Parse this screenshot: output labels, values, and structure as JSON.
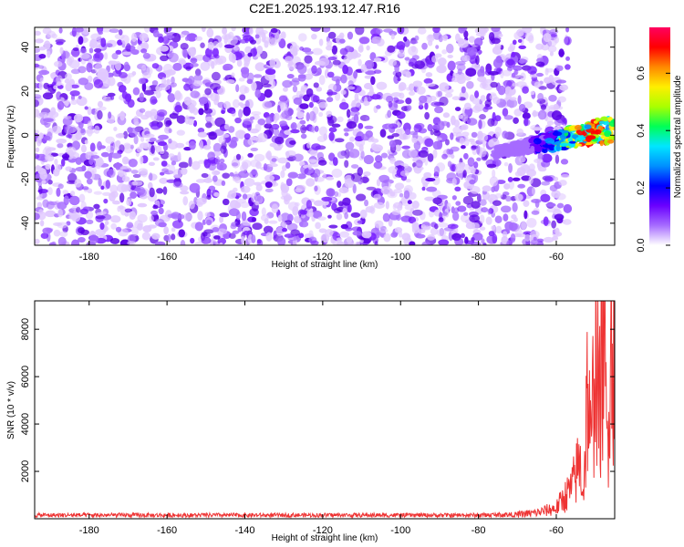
{
  "title": "C2E1.2025.193.12.47.R16",
  "chart_data": [
    {
      "type": "heatmap",
      "title": "C2E1.2025.193.12.47.R16",
      "xlabel": "Height of straight line (km)",
      "ylabel": "Frequency (Hz)",
      "xlim": [
        -194,
        -45
      ],
      "ylim": [
        -50,
        49
      ],
      "xticks": [
        -180,
        -160,
        -140,
        -120,
        -100,
        -80,
        -60
      ],
      "yticks": [
        -40,
        -20,
        0,
        20,
        40
      ],
      "colorbar": {
        "label": "Normalized spectral amplitude",
        "range": [
          0,
          0.76
        ],
        "ticks": [
          0.0,
          0.2,
          0.4,
          0.6
        ],
        "colormap": [
          "#ffffff",
          "#a66cff",
          "#6a00ff",
          "#0000ff",
          "#0090ff",
          "#00e6ff",
          "#00ff55",
          "#aaff00",
          "#ffee00",
          "#ff8800",
          "#ff0000",
          "#ff0060"
        ]
      },
      "features": {
        "background_noise": {
          "x_range": [
            -194,
            -60
          ],
          "typical_amplitude": 0.05
        },
        "signal": {
          "x_range": [
            -76,
            -45
          ],
          "frequency_start": -8,
          "frequency_end": 3,
          "peak_x": -51,
          "peak_frequency": -1,
          "peak_amplitude": 0.7
        }
      }
    },
    {
      "type": "line",
      "xlabel": "Height of straight line (km)",
      "ylabel": "SNR (10 * v/v)",
      "xlim": [
        -194,
        -45
      ],
      "ylim": [
        0,
        9200
      ],
      "xticks": [
        -180,
        -160,
        -140,
        -120,
        -100,
        -80,
        -60
      ],
      "yticks": [
        2000,
        4000,
        6000,
        8000
      ],
      "color": "#ee3333",
      "series": [
        {
          "x": [
            -194,
            -180,
            -160,
            -140,
            -120,
            -100,
            -80,
            -70,
            -65,
            -60,
            -58,
            -56,
            -54,
            -53,
            -52,
            -51,
            -50,
            -49,
            -48,
            -47,
            -46,
            -45
          ],
          "y": [
            150,
            150,
            150,
            150,
            150,
            150,
            150,
            180,
            250,
            450,
            900,
            1300,
            2400,
            1100,
            5600,
            2600,
            8300,
            4200,
            9100,
            3000,
            8400,
            7500
          ]
        }
      ]
    }
  ]
}
